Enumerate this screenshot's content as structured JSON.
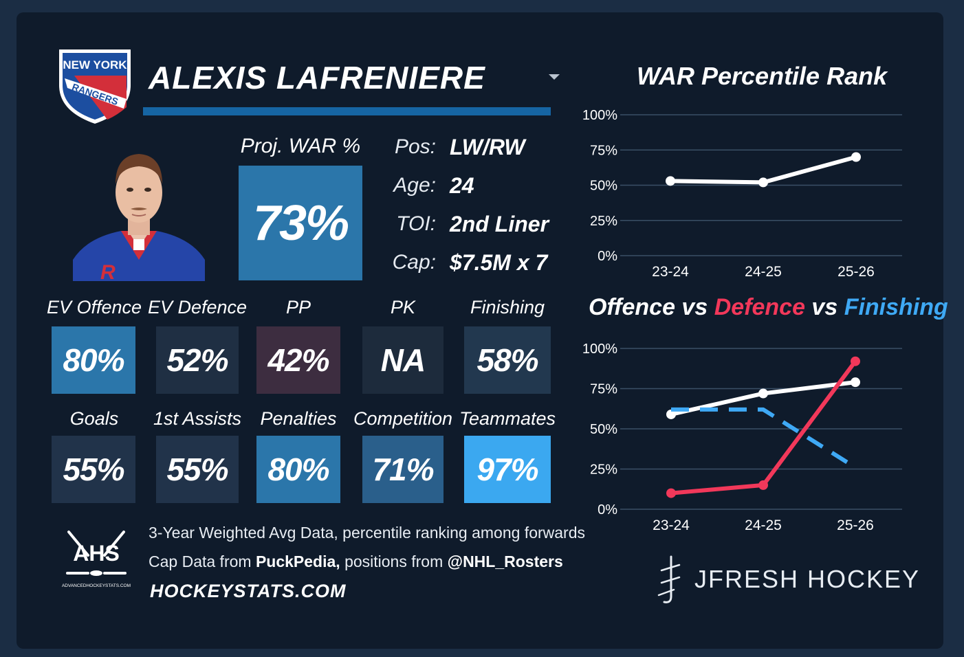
{
  "player": {
    "name": "ALEXIS LAFRENIERE",
    "team_logo_text": [
      "NEW YORK",
      "RANGERS"
    ]
  },
  "projection": {
    "label": "Proj. WAR %",
    "value": "73%"
  },
  "info": [
    {
      "label": "Pos:",
      "value": "LW/RW"
    },
    {
      "label": "Age:",
      "value": "24"
    },
    {
      "label": "TOI:",
      "value": "2nd Liner"
    },
    {
      "label": "Cap:",
      "value": "$7.5M x 7"
    }
  ],
  "stats_row1": [
    {
      "label": "EV Offence",
      "value": "80%",
      "color": "#2b76aa"
    },
    {
      "label": "EV Defence",
      "value": "52%",
      "color": "#1f2f43"
    },
    {
      "label": "PP",
      "value": "42%",
      "color": "#3d2d40"
    },
    {
      "label": "PK",
      "value": "NA",
      "color": "#1d2b3c"
    },
    {
      "label": "Finishing",
      "value": "58%",
      "color": "#22384f"
    }
  ],
  "stats_row2": [
    {
      "label": "Goals",
      "value": "55%",
      "color": "#21334a"
    },
    {
      "label": "1st Assists",
      "value": "55%",
      "color": "#21334a"
    },
    {
      "label": "Penalties",
      "value": "80%",
      "color": "#2b76aa"
    },
    {
      "label": "Competition",
      "value": "71%",
      "color": "#2a5f8b"
    },
    {
      "label": "Teammates",
      "value": "97%",
      "color": "#3ba8f0"
    }
  ],
  "footer": {
    "line1": "3-Year Weighted Avg Data, percentile ranking among forwards",
    "line2_prefix": "Cap Data from ",
    "line2_source1": "PuckPedia,",
    "line2_mid": " positions from ",
    "line2_source2": "@NHL_Rosters",
    "site": "HOCKEYSTATS.COM",
    "ahs_logo_text": "AHS",
    "ahs_logo_sub": "ADVANCEDHOCKEYSTATS.COM",
    "brand": "JFRESH HOCKEY"
  },
  "chart_data": [
    {
      "type": "line",
      "title": "WAR Percentile Rank",
      "x": [
        "23-24",
        "24-25",
        "25-26"
      ],
      "y_ticks": [
        "0%",
        "25%",
        "50%",
        "75%",
        "100%"
      ],
      "ylim": [
        0,
        100
      ],
      "grid": true,
      "series": [
        {
          "values": [
            53,
            52,
            70
          ],
          "color": "#ffffff"
        }
      ]
    },
    {
      "type": "line",
      "title_parts": [
        "Offence",
        " vs ",
        "Defence",
        " vs ",
        "Finishing"
      ],
      "x": [
        "23-24",
        "24-25",
        "25-26"
      ],
      "y_ticks": [
        "0%",
        "25%",
        "50%",
        "75%",
        "100%"
      ],
      "ylim": [
        0,
        100
      ],
      "grid": true,
      "series": [
        {
          "name": "Offence",
          "values": [
            59,
            72,
            79
          ],
          "color": "#ffffff",
          "dashed": false
        },
        {
          "name": "Defence",
          "values": [
            10,
            15,
            92
          ],
          "color": "#f2385a",
          "dashed": false
        },
        {
          "name": "Finishing",
          "values": [
            62,
            62,
            26
          ],
          "color": "#3fa9f5",
          "dashed": true
        }
      ]
    }
  ]
}
